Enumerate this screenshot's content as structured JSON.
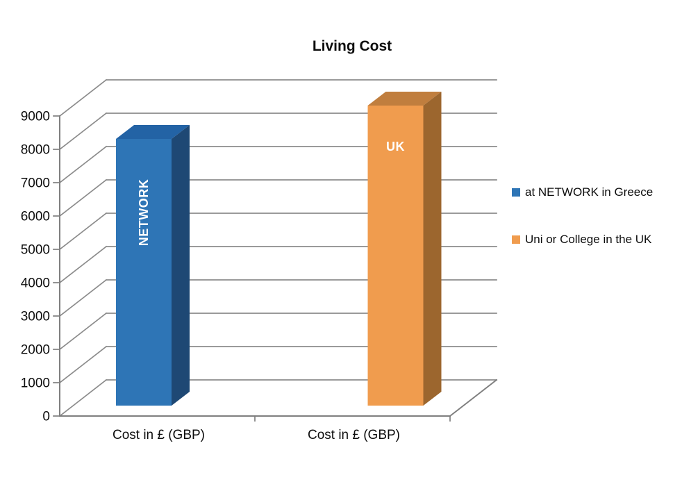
{
  "chart_data": {
    "type": "bar",
    "variant": "3d-column",
    "title": "Living Cost",
    "categories": [
      "Cost in £ (GBP)",
      "Cost in £ (GBP)"
    ],
    "series": [
      {
        "name": "at NETWORK in Greece",
        "bar_label": "NETWORK",
        "values": [
          8000,
          null
        ],
        "color_front": "#2E75B6",
        "color_side": "#1E4874",
        "color_top": "#2363A5"
      },
      {
        "name": "Uni or College in the UK",
        "bar_label": "UK",
        "values": [
          null,
          9000
        ],
        "color_front": "#F09C4E",
        "color_side": "#9C662E",
        "color_top": "#C07E3E"
      }
    ],
    "xlabel": "",
    "ylabel": "",
    "ylim": [
      0,
      9000
    ],
    "ytick_step": 1000,
    "grid": true,
    "legend_position": "right",
    "bar_label_color": "#FFFFFF",
    "gridline_color": "#8C8C8C",
    "axis_color": "#7F7F7F",
    "text_color": "#0d0d0d"
  }
}
